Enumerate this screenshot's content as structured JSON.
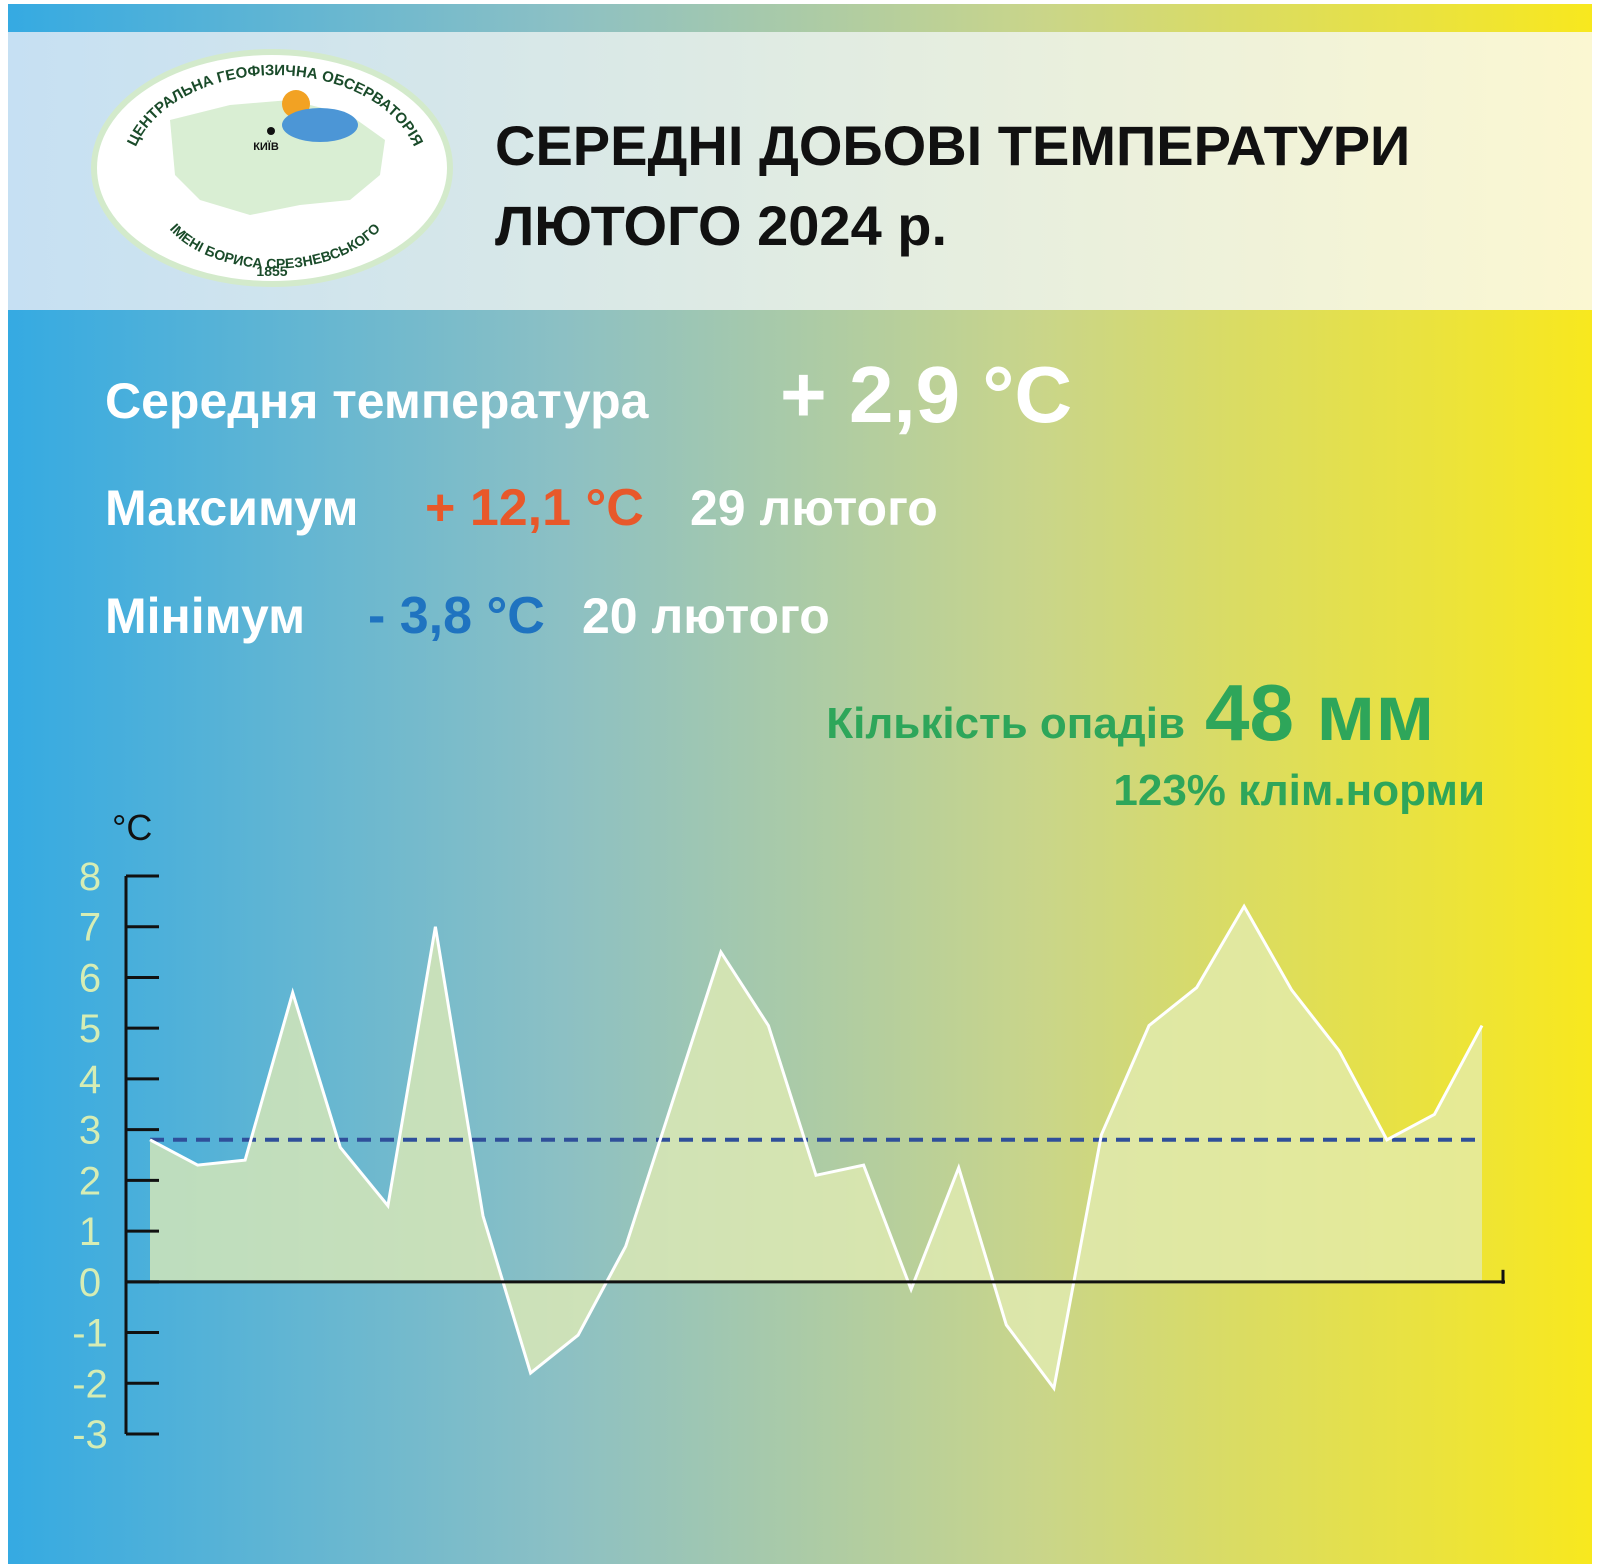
{
  "header": {
    "title_line1": "СЕРЕДНІ ДОБОВІ ТЕМПЕРАТУРИ",
    "title_line2": "ЛЮТОГО 2024 р."
  },
  "logo": {
    "top_text": "ЦЕНТРАЛЬНА ГЕОФІЗИЧНА ОБСЕРВАТОРІЯ",
    "bottom_text": "ІМЕНІ БОРИСА СРЕЗНЕВСЬКОГО",
    "year": "1855",
    "city": "КИЇВ"
  },
  "stats": {
    "mean_label": "Середня температура",
    "mean_value": "+ 2,9 °C",
    "max_label": "Максимум",
    "max_value": "+ 12,1 °C",
    "max_date": "29 лютого",
    "min_label": "Мінімум",
    "min_value": "- 3,8 °C",
    "min_date": "20 лютого",
    "precip_label": "Кількість опадів",
    "precip_value": "48 мм",
    "precip_norm": "123% клім.норми"
  },
  "chart_data": {
    "type": "area",
    "y_label": "°C",
    "values": [
      2.8,
      2.3,
      2.4,
      5.7,
      2.65,
      1.5,
      7.0,
      1.3,
      -1.8,
      -1.05,
      0.7,
      3.6,
      6.5,
      5.05,
      2.1,
      2.3,
      -0.15,
      2.25,
      -0.85,
      -2.1,
      2.9,
      5.05,
      5.8,
      7.4,
      5.75,
      4.55,
      2.8,
      3.3,
      5.05
    ],
    "mean_line": 2.8,
    "ylim": [
      -3,
      8
    ],
    "yticks": [
      -3,
      -2,
      -1,
      0,
      1,
      2,
      3,
      4,
      5,
      6,
      7,
      8
    ],
    "fill_color": "#e3ecb4",
    "line_color": "#ffffff",
    "mean_color": "#2f4f9a",
    "tick_label_color": "#d6edb4"
  }
}
